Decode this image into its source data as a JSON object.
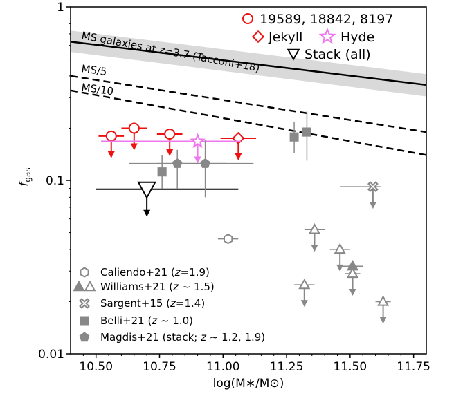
{
  "chart_data": {
    "type": "scatter",
    "title": "",
    "xlabel": "log(M∗/M⊙)",
    "ylabel": "f_gas",
    "xlim": [
      10.4,
      11.8
    ],
    "ylim": [
      0.01,
      1
    ],
    "yscale": "log",
    "x_ticks": [
      "10.50",
      "10.75",
      "11.00",
      "11.25",
      "11.50",
      "11.75"
    ],
    "x_tick_values": [
      10.5,
      10.75,
      11.0,
      11.25,
      11.5,
      11.75
    ],
    "y_ticks": [
      "0.01",
      "0.1",
      "1"
    ],
    "y_tick_values": [
      0.01,
      0.1,
      1
    ],
    "grid": false,
    "colors": {
      "red": "#ee1111",
      "pink": "#ee77ee",
      "black": "#000000",
      "grey": "#888888",
      "band": "#d9d9d9"
    },
    "lines": [
      {
        "name": "MS galaxies at z=3.7 (Tacconi+18)",
        "style": "solid",
        "x": [
          10.4,
          11.8
        ],
        "y": [
          0.63,
          0.355
        ],
        "band_upper": [
          0.73,
          0.41
        ],
        "band_lower": [
          0.55,
          0.305
        ]
      },
      {
        "name": "MS/5",
        "style": "dashed",
        "x": [
          10.4,
          11.8
        ],
        "y": [
          0.4,
          0.19
        ]
      },
      {
        "name": "MS/10",
        "style": "dashed",
        "x": [
          10.4,
          11.8
        ],
        "y": [
          0.33,
          0.14
        ]
      }
    ],
    "annotations": {
      "ms_pre": "MS galaxies at ",
      "ms_z": "z",
      "ms_post": "=3.7 (Tacconi+18)",
      "ms5": "MS/5",
      "ms10": "MS/10"
    },
    "series": [
      {
        "name": "19589, 18842, 8197",
        "marker": "circle-open",
        "color": "red",
        "upper_limit": true,
        "points": [
          {
            "x": 10.56,
            "y": 0.18,
            "xerr": 0.05
          },
          {
            "x": 10.65,
            "y": 0.2,
            "xerr": 0.05
          },
          {
            "x": 10.79,
            "y": 0.185,
            "xerr": 0.05
          }
        ]
      },
      {
        "name": "Jekyll",
        "marker": "diamond-open",
        "color": "red",
        "upper_limit": true,
        "points": [
          {
            "x": 11.06,
            "y": 0.175,
            "xerr": 0.07
          }
        ]
      },
      {
        "name": "Hyde",
        "marker": "star-open",
        "color": "pink",
        "upper_limit": true,
        "points": [
          {
            "x": 10.9,
            "y": 0.168,
            "xerr_low": 0.38,
            "xerr_high": 0.17
          }
        ]
      },
      {
        "name": "Stack (all)",
        "marker": "triangle-down-open",
        "color": "black",
        "upper_limit": true,
        "points": [
          {
            "x": 10.7,
            "y": 0.089,
            "xerr_low": 0.2,
            "xerr_high": 0.36
          }
        ]
      },
      {
        "name": "Caliendo+21 (z=1.9)",
        "marker": "hexagon-open",
        "color": "grey",
        "upper_limit": false,
        "points": [
          {
            "x": 11.02,
            "y": 0.046,
            "xerr": 0.04
          }
        ]
      },
      {
        "name": "Williams+21 (z~1.5) detections",
        "marker": "triangle-filled",
        "color": "grey",
        "upper_limit": false,
        "points": [
          {
            "x": 11.51,
            "y": 0.032,
            "xerr": 0.04
          }
        ]
      },
      {
        "name": "Williams+21 (z~1.5) limits",
        "marker": "triangle-open",
        "color": "grey",
        "upper_limit": true,
        "points": [
          {
            "x": 11.36,
            "y": 0.052,
            "xerr": 0.04
          },
          {
            "x": 11.46,
            "y": 0.04,
            "xerr": 0.04
          },
          {
            "x": 11.51,
            "y": 0.029,
            "xerr": 0.03
          },
          {
            "x": 11.32,
            "y": 0.025,
            "xerr": 0.04
          },
          {
            "x": 11.63,
            "y": 0.02,
            "xerr": 0.03
          }
        ]
      },
      {
        "name": "Sargent+15 (z=1.4)",
        "marker": "x-open",
        "color": "grey",
        "upper_limit": true,
        "points": [
          {
            "x": 11.59,
            "y": 0.092,
            "xerr_low": 0.13,
            "xerr_high": 0.03
          }
        ]
      },
      {
        "name": "Belli+21 (z~1.0)",
        "marker": "square-filled",
        "color": "grey",
        "upper_limit": false,
        "points": [
          {
            "x": 10.76,
            "y": 0.112,
            "yerr_low": 0.022,
            "yerr_high": 0.028
          },
          {
            "x": 11.28,
            "y": 0.178,
            "yerr_low": 0.035,
            "yerr_high": 0.04
          },
          {
            "x": 11.33,
            "y": 0.19,
            "yerr_low": 0.06,
            "yerr_high": 0.06
          }
        ]
      },
      {
        "name": "Magdis+21 (stack; z~1.2, 1.9)",
        "marker": "pentagon-filled",
        "color": "grey",
        "upper_limit": false,
        "points": [
          {
            "x": 10.82,
            "y": 0.125,
            "xerr": 0.19,
            "yerr_low": 0.035,
            "yerr_high": 0.025
          },
          {
            "x": 10.93,
            "y": 0.125,
            "xerr": 0.19,
            "yerr_low": 0.045,
            "yerr_high": 0.045
          }
        ]
      }
    ],
    "legend_top": [
      {
        "text": "19589, 18842, 8197",
        "marker": "circle-open",
        "color": "red"
      },
      {
        "text": "Jekyll",
        "marker": "diamond-open",
        "color": "red"
      },
      {
        "text": "Hyde",
        "marker": "star-open",
        "color": "pink"
      },
      {
        "text": "Stack (all)",
        "marker": "triangle-down-open",
        "color": "black"
      }
    ],
    "legend_bottom": [
      {
        "pre": "Caliendo+21 (",
        "zsym": "z",
        "post": "=1.9)",
        "markers": [
          "hexagon-open"
        ]
      },
      {
        "pre": "Williams+21 (",
        "zsym": "z",
        "post": " ∼ 1.5)",
        "markers": [
          "triangle-filled",
          "triangle-open"
        ]
      },
      {
        "pre": "Sargent+15 (",
        "zsym": "z",
        "post": "=1.4)",
        "markers": [
          "x-open"
        ]
      },
      {
        "pre": "Belli+21 (",
        "zsym": "z",
        "post": " ∼ 1.0)",
        "markers": [
          "square-filled"
        ]
      },
      {
        "pre": "Magdis+21 (stack; ",
        "zsym": "z",
        "post": " ∼ 1.2, 1.9)",
        "markers": [
          "pentagon-filled"
        ]
      }
    ]
  }
}
